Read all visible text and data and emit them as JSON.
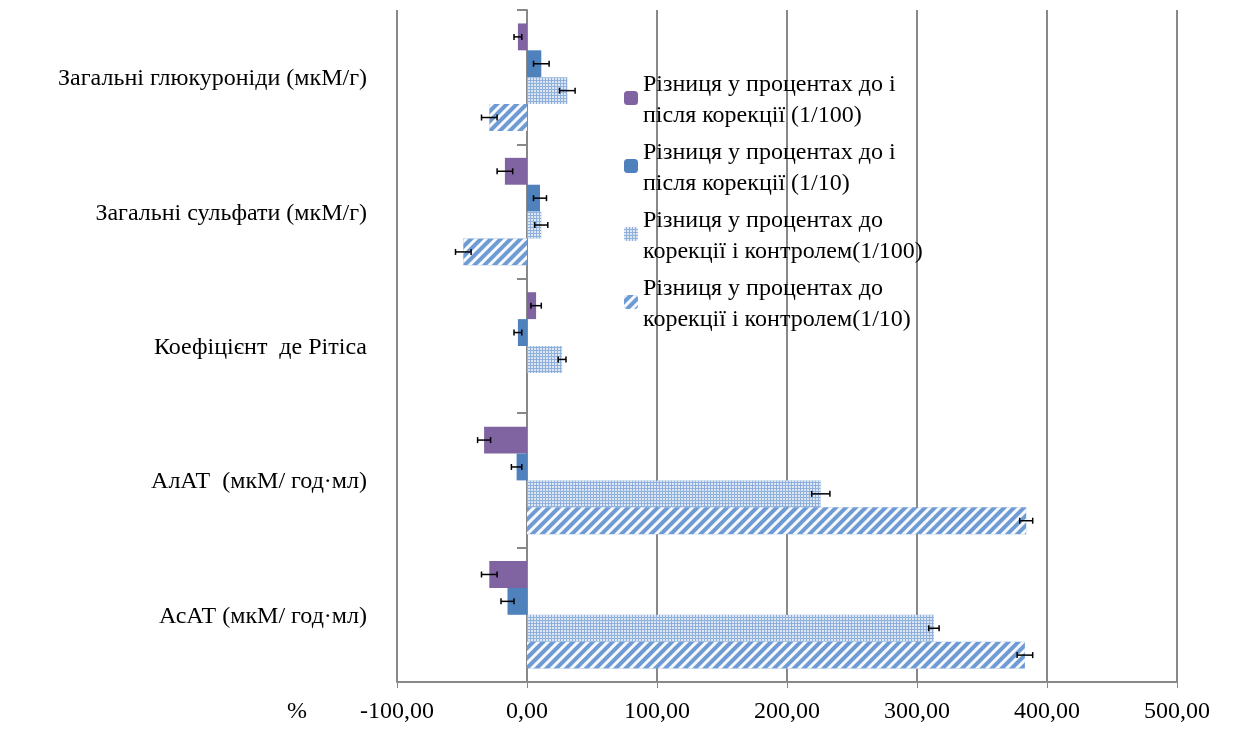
{
  "chart_data": {
    "type": "bar",
    "orientation": "horizontal",
    "xlabel": "%",
    "categories": [
      "Загальні глюкуроніди (мкМ/г)",
      "Загальні сульфати (мкМ/г)",
      "Коефіцієнт  де Рітіса",
      "АлАТ  (мкМ/ год·мл)",
      "АсАТ (мкМ/ год·мл)"
    ],
    "series": [
      {
        "name": "Різниця у процентах до і  після корекції (1/100)",
        "color": "#8064a2",
        "values": [
          -7,
          -17,
          7,
          -33,
          -29
        ],
        "errors": [
          3,
          6,
          4,
          5,
          6
        ]
      },
      {
        "name": "Різниця у процентах до і  після корекції (1/10)",
        "color": "#4f81bd",
        "values": [
          11,
          10,
          -7,
          -8,
          -15
        ],
        "errors": [
          6,
          5,
          3,
          4,
          5
        ]
      },
      {
        "name": "Різниця у процентах до корекції і контролем(1/100)",
        "color": "#8eb0db",
        "values": [
          31,
          11,
          27,
          226,
          313
        ],
        "errors": [
          6,
          5,
          3,
          7,
          4
        ]
      },
      {
        "name": "Різниця у процентах до корекції і контролем(1/10)",
        "color": "#6f9bd4",
        "values": [
          -29,
          -49,
          null,
          384,
          383
        ],
        "errors": [
          6,
          6,
          null,
          5,
          6
        ]
      }
    ],
    "xlim": [
      -100,
      500
    ],
    "xticks": [
      {
        "value": -100,
        "label": "-100,00"
      },
      {
        "value": 0,
        "label": "0,00"
      },
      {
        "value": 100,
        "label": "100,00"
      },
      {
        "value": 200,
        "label": "200,00"
      },
      {
        "value": 300,
        "label": "300,00"
      },
      {
        "value": 400,
        "label": "400,00"
      },
      {
        "value": 500,
        "label": "500,00"
      }
    ],
    "grid": "x",
    "legend": "top right"
  }
}
